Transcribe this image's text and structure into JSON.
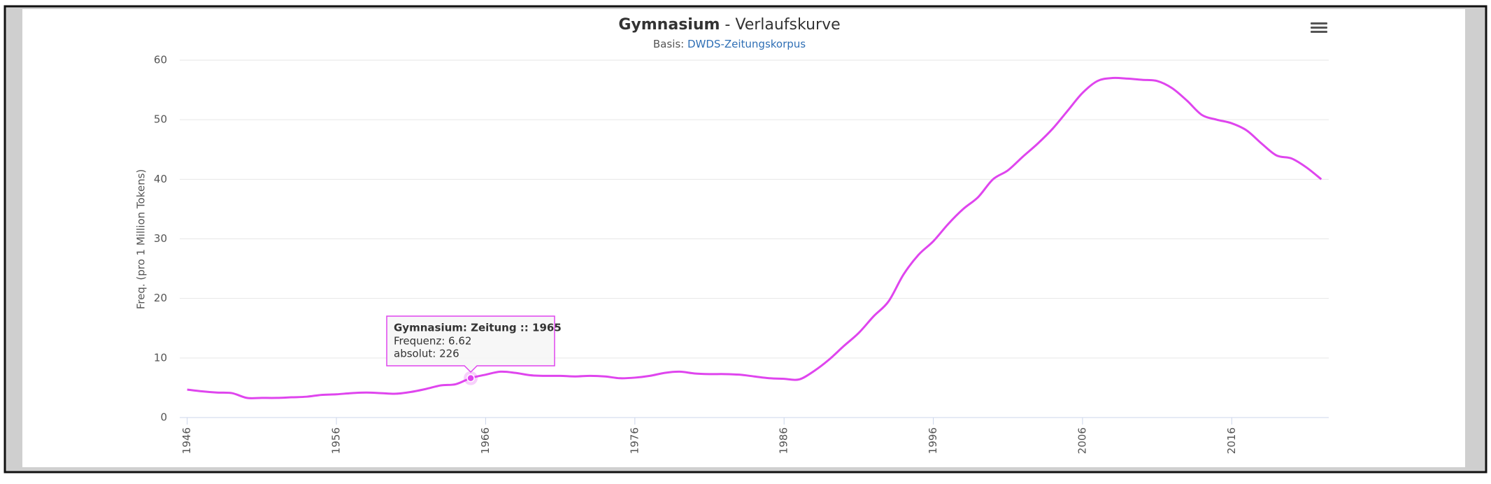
{
  "chart_data": {
    "type": "line",
    "title": "Gymnasium",
    "title_suffix": " - Verlaufskurve",
    "subtitle_prefix": "Basis: ",
    "subtitle_link": "DWDS-Zeitungskorpus",
    "y_label": "Freq. (pro 1 Million Tokens)",
    "x": [
      1946,
      1947,
      1948,
      1949,
      1950,
      1951,
      1952,
      1953,
      1954,
      1955,
      1956,
      1957,
      1958,
      1959,
      1960,
      1961,
      1962,
      1963,
      1964,
      1965,
      1966,
      1967,
      1968,
      1969,
      1970,
      1971,
      1972,
      1973,
      1974,
      1975,
      1976,
      1977,
      1978,
      1979,
      1980,
      1981,
      1982,
      1983,
      1984,
      1985,
      1986,
      1987,
      1988,
      1989,
      1990,
      1991,
      1992,
      1993,
      1994,
      1995,
      1996,
      1997,
      1998,
      1999,
      2000,
      2001,
      2002,
      2003,
      2004,
      2005,
      2006,
      2007,
      2008,
      2009,
      2010,
      2011,
      2012,
      2013,
      2014,
      2015,
      2016,
      2017,
      2018,
      2019,
      2020,
      2021,
      2022
    ],
    "series": [
      {
        "name": "Gymnasium: Zeitung",
        "color": "#df45ee",
        "values": [
          4.7,
          4.4,
          4.2,
          4.1,
          3.3,
          3.3,
          3.3,
          3.4,
          3.5,
          3.8,
          3.9,
          4.1,
          4.2,
          4.1,
          4.0,
          4.3,
          4.8,
          5.4,
          5.6,
          6.62,
          7.2,
          7.7,
          7.5,
          7.1,
          7.0,
          7.0,
          6.9,
          7.0,
          6.9,
          6.6,
          6.7,
          7.0,
          7.5,
          7.7,
          7.4,
          7.3,
          7.3,
          7.2,
          6.9,
          6.6,
          6.5,
          6.4,
          7.8,
          9.7,
          12.0,
          14.2,
          17.0,
          19.5,
          24.0,
          27.3,
          29.6,
          32.5,
          35.0,
          37.0,
          40.0,
          41.5,
          43.8,
          46.0,
          48.5,
          51.5,
          54.5,
          56.5,
          57.0,
          56.9,
          56.7,
          56.5,
          55.3,
          53.2,
          50.8,
          50.0,
          49.4,
          48.2,
          46.0,
          44.0,
          43.5,
          42.0,
          40.0
        ]
      }
    ],
    "xlim": [
      1945.5,
      2022.5
    ],
    "xticks": [
      1946,
      1956,
      1966,
      1976,
      1986,
      1996,
      2006,
      2016
    ],
    "ylim": [
      0,
      60
    ],
    "yticks": [
      0,
      10,
      20,
      30,
      40,
      50,
      60
    ],
    "grid": true,
    "tooltip": {
      "index": 19,
      "header": "Gymnasium: Zeitung :: 1965",
      "lines": [
        "Frequenz: 6.62",
        "absolut: 226"
      ]
    }
  }
}
